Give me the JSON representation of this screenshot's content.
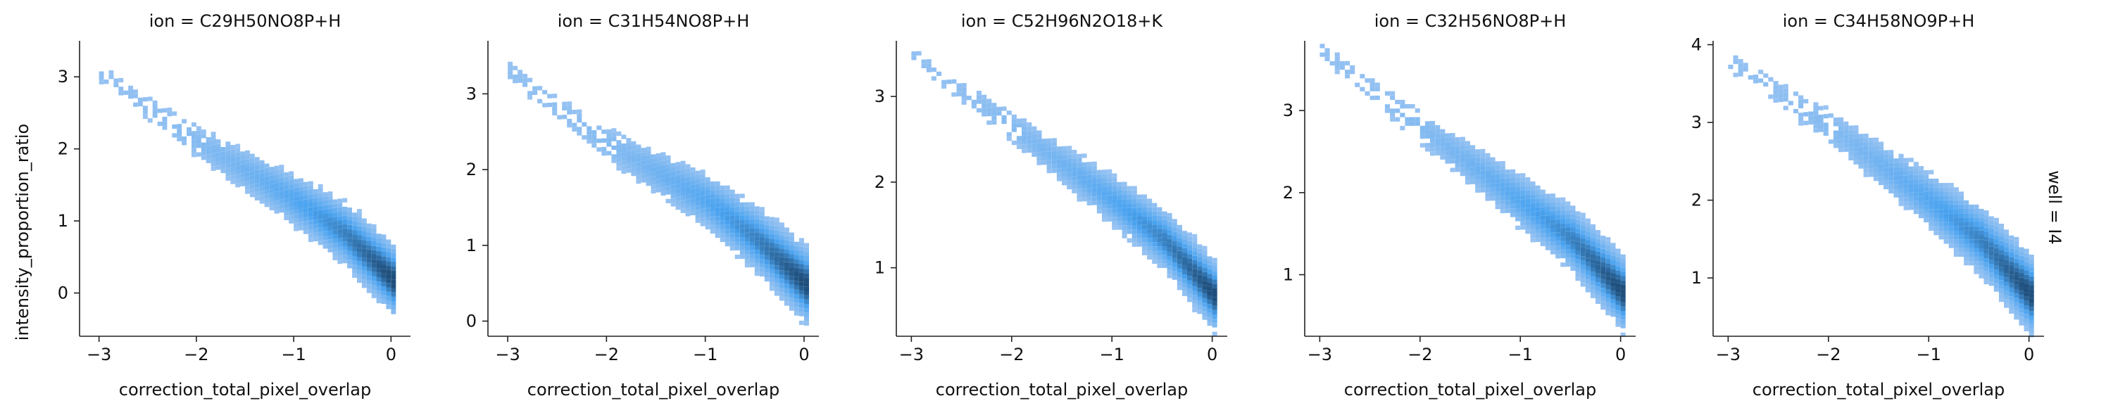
{
  "chart_data": {
    "type": "heatmap",
    "facet": {
      "col_var": "ion",
      "row_label": "well = I4"
    },
    "axis": {
      "xlabel": "correction_total_pixel_overlap",
      "ylabel": "intensity_proportion_ratio"
    },
    "colors": {
      "light": "#a5c8f2",
      "mid": "#4aa3f0",
      "dark": "#1f4f7c",
      "axis": "#222222"
    },
    "panels": [
      {
        "title": "ion = C29H50NO8P+H",
        "xlim": [
          -3.2,
          0.2
        ],
        "ylim": [
          -0.6,
          3.5
        ],
        "xticks": [
          -3,
          -2,
          -1,
          0
        ],
        "yticks": [
          0,
          1,
          2,
          3
        ],
        "ridge": [
          [
            -3.0,
            3.0
          ],
          [
            -2.0,
            2.05
          ],
          [
            -1.0,
            1.25
          ],
          [
            -0.5,
            0.8
          ],
          [
            0.0,
            0.15
          ]
        ],
        "spread": 0.2
      },
      {
        "title": "ion = C31H54NO8P+H",
        "xlim": [
          -3.2,
          0.15
        ],
        "ylim": [
          -0.2,
          3.7
        ],
        "xticks": [
          -3,
          -2,
          -1,
          0
        ],
        "yticks": [
          0,
          1,
          2,
          3
        ],
        "ridge": [
          [
            -3.0,
            3.25
          ],
          [
            -2.0,
            2.3
          ],
          [
            -1.0,
            1.55
          ],
          [
            -0.5,
            1.05
          ],
          [
            0.0,
            0.45
          ]
        ],
        "spread": 0.2
      },
      {
        "title": "ion = C52H96N2O18+K",
        "xlim": [
          -3.15,
          0.15
        ],
        "ylim": [
          0.2,
          3.65
        ],
        "xticks": [
          -3,
          -2,
          -1,
          0
        ],
        "yticks": [
          1,
          2,
          3
        ],
        "ridge": [
          [
            -3.0,
            3.45
          ],
          [
            -2.0,
            2.6
          ],
          [
            -1.0,
            1.75
          ],
          [
            -0.5,
            1.3
          ],
          [
            0.0,
            0.65
          ]
        ],
        "spread": 0.16
      },
      {
        "title": "ion = C32H56NO8P+H",
        "xlim": [
          -3.15,
          0.15
        ],
        "ylim": [
          0.25,
          3.85
        ],
        "xticks": [
          -3,
          -2,
          -1,
          0
        ],
        "yticks": [
          1,
          2,
          3
        ],
        "ridge": [
          [
            -3.0,
            3.7
          ],
          [
            -2.0,
            2.75
          ],
          [
            -1.0,
            1.85
          ],
          [
            -0.5,
            1.4
          ],
          [
            0.0,
            0.75
          ]
        ],
        "spread": 0.18
      },
      {
        "title": "ion = C34H58NO9P+H",
        "xlim": [
          -3.15,
          0.15
        ],
        "ylim": [
          0.25,
          4.05
        ],
        "xticks": [
          -3,
          -2,
          -1,
          0
        ],
        "yticks": [
          1,
          2,
          3,
          4
        ],
        "ridge": [
          [
            -3.0,
            3.75
          ],
          [
            -2.0,
            2.9
          ],
          [
            -1.0,
            1.95
          ],
          [
            -0.5,
            1.45
          ],
          [
            0.0,
            0.75
          ]
        ],
        "spread": 0.2
      }
    ]
  }
}
